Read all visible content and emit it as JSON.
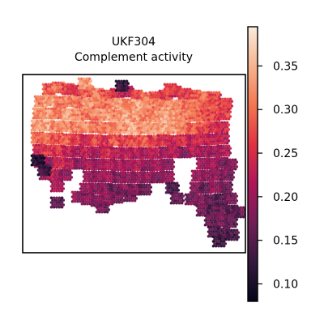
{
  "chart_data": {
    "type": "scatter",
    "title": "UKF304",
    "subtitle": "Complement activity",
    "xlabel": "",
    "ylabel": "",
    "grid": false,
    "colormap": "rocket",
    "colorbar": {
      "range": [
        0.08,
        0.395
      ],
      "ticks": [
        0.1,
        0.15,
        0.2,
        0.25,
        0.3,
        0.35
      ],
      "tick_labels": [
        "0.10",
        "0.15",
        "0.20",
        "0.25",
        "0.30",
        "0.35"
      ],
      "stops": [
        "#03051a",
        "#35193e",
        "#701f57",
        "#ad1759",
        "#e13342",
        "#f37651",
        "#f6b48f",
        "#faebdd"
      ]
    },
    "spots": [
      [
        60,
        110,
        0.28
      ],
      [
        72,
        108,
        0.3
      ],
      [
        84,
        110,
        0.27
      ],
      [
        96,
        112,
        0.26
      ],
      [
        108,
        113,
        0.29
      ],
      [
        120,
        116,
        0.31
      ],
      [
        132,
        118,
        0.28
      ],
      [
        144,
        116,
        0.25
      ],
      [
        156,
        113,
        0.22
      ],
      [
        168,
        118,
        0.27
      ],
      [
        180,
        121,
        0.3
      ],
      [
        192,
        120,
        0.28
      ],
      [
        204,
        118,
        0.26
      ],
      [
        216,
        113,
        0.23
      ],
      [
        228,
        116,
        0.26
      ],
      [
        240,
        118,
        0.28
      ],
      [
        252,
        120,
        0.3
      ],
      [
        264,
        120,
        0.27
      ],
      [
        50,
        125,
        0.31
      ],
      [
        62,
        124,
        0.33
      ],
      [
        74,
        126,
        0.3
      ],
      [
        86,
        125,
        0.32
      ],
      [
        98,
        127,
        0.3
      ],
      [
        110,
        128,
        0.33
      ],
      [
        122,
        127,
        0.31
      ],
      [
        134,
        129,
        0.3
      ],
      [
        146,
        128,
        0.33
      ],
      [
        158,
        129,
        0.31
      ],
      [
        170,
        130,
        0.34
      ],
      [
        182,
        129,
        0.32
      ],
      [
        194,
        130,
        0.31
      ],
      [
        206,
        131,
        0.33
      ],
      [
        218,
        130,
        0.32
      ],
      [
        230,
        131,
        0.3
      ],
      [
        242,
        130,
        0.31
      ],
      [
        254,
        131,
        0.29
      ],
      [
        266,
        130,
        0.27
      ],
      [
        278,
        128,
        0.26
      ],
      [
        48,
        140,
        0.32
      ],
      [
        60,
        140,
        0.33
      ],
      [
        72,
        140,
        0.31
      ],
      [
        84,
        141,
        0.34
      ],
      [
        96,
        142,
        0.32
      ],
      [
        108,
        141,
        0.3
      ],
      [
        120,
        142,
        0.31
      ],
      [
        132,
        142,
        0.33
      ],
      [
        144,
        143,
        0.32
      ],
      [
        156,
        143,
        0.34
      ],
      [
        168,
        144,
        0.33
      ],
      [
        180,
        143,
        0.31
      ],
      [
        192,
        144,
        0.32
      ],
      [
        204,
        144,
        0.34
      ],
      [
        216,
        143,
        0.33
      ],
      [
        228,
        144,
        0.31
      ],
      [
        240,
        143,
        0.3
      ],
      [
        252,
        143,
        0.28
      ],
      [
        264,
        142,
        0.27
      ],
      [
        276,
        141,
        0.26
      ],
      [
        46,
        155,
        0.33
      ],
      [
        58,
        155,
        0.34
      ],
      [
        70,
        156,
        0.32
      ],
      [
        82,
        156,
        0.33
      ],
      [
        94,
        157,
        0.31
      ],
      [
        106,
        157,
        0.32
      ],
      [
        118,
        157,
        0.3
      ],
      [
        130,
        158,
        0.31
      ],
      [
        142,
        158,
        0.32
      ],
      [
        154,
        158,
        0.33
      ],
      [
        166,
        159,
        0.34
      ],
      [
        178,
        158,
        0.32
      ],
      [
        190,
        159,
        0.33
      ],
      [
        202,
        159,
        0.34
      ],
      [
        214,
        158,
        0.33
      ],
      [
        226,
        158,
        0.31
      ],
      [
        238,
        159,
        0.29
      ],
      [
        250,
        158,
        0.27
      ],
      [
        262,
        157,
        0.26
      ],
      [
        274,
        157,
        0.24
      ],
      [
        46,
        170,
        0.29
      ],
      [
        58,
        171,
        0.3
      ],
      [
        70,
        171,
        0.27
      ],
      [
        82,
        172,
        0.29
      ],
      [
        94,
        172,
        0.26
      ],
      [
        106,
        173,
        0.24
      ],
      [
        118,
        173,
        0.27
      ],
      [
        130,
        174,
        0.25
      ],
      [
        142,
        173,
        0.28
      ],
      [
        154,
        174,
        0.26
      ],
      [
        166,
        174,
        0.27
      ],
      [
        178,
        174,
        0.28
      ],
      [
        190,
        174,
        0.26
      ],
      [
        202,
        173,
        0.25
      ],
      [
        214,
        174,
        0.24
      ],
      [
        226,
        173,
        0.25
      ],
      [
        238,
        173,
        0.23
      ],
      [
        250,
        172,
        0.24
      ],
      [
        262,
        172,
        0.23
      ],
      [
        274,
        171,
        0.22
      ],
      [
        48,
        185,
        0.24
      ],
      [
        60,
        186,
        0.26
      ],
      [
        72,
        186,
        0.25
      ],
      [
        84,
        187,
        0.23
      ],
      [
        96,
        187,
        0.22
      ],
      [
        108,
        188,
        0.23
      ],
      [
        120,
        188,
        0.21
      ],
      [
        132,
        188,
        0.24
      ],
      [
        144,
        189,
        0.22
      ],
      [
        156,
        189,
        0.23
      ],
      [
        168,
        189,
        0.22
      ],
      [
        180,
        189,
        0.21
      ],
      [
        192,
        189,
        0.23
      ],
      [
        204,
        188,
        0.2
      ],
      [
        216,
        188,
        0.22
      ],
      [
        228,
        188,
        0.19
      ],
      [
        240,
        187,
        0.22
      ],
      [
        252,
        187,
        0.21
      ],
      [
        264,
        187,
        0.2
      ],
      [
        276,
        186,
        0.21
      ],
      [
        50,
        200,
        0.22
      ],
      [
        62,
        201,
        0.2
      ],
      [
        74,
        201,
        0.24
      ],
      [
        86,
        202,
        0.22
      ],
      [
        98,
        202,
        0.18
      ],
      [
        110,
        203,
        0.21
      ],
      [
        122,
        203,
        0.2
      ],
      [
        134,
        203,
        0.22
      ],
      [
        146,
        204,
        0.21
      ],
      [
        158,
        204,
        0.2
      ],
      [
        170,
        204,
        0.22
      ],
      [
        182,
        204,
        0.19
      ],
      [
        194,
        204,
        0.21
      ],
      [
        206,
        203,
        0.18
      ],
      [
        250,
        202,
        0.21
      ],
      [
        262,
        202,
        0.2
      ],
      [
        274,
        201,
        0.19
      ],
      [
        284,
        203,
        0.18
      ],
      [
        56,
        215,
        0.2
      ],
      [
        68,
        216,
        0.22
      ],
      [
        80,
        216,
        0.19
      ],
      [
        110,
        218,
        0.2
      ],
      [
        122,
        218,
        0.19
      ],
      [
        134,
        218,
        0.21
      ],
      [
        146,
        219,
        0.18
      ],
      [
        158,
        219,
        0.2
      ],
      [
        170,
        219,
        0.19
      ],
      [
        182,
        219,
        0.2
      ],
      [
        194,
        219,
        0.18
      ],
      [
        206,
        218,
        0.19
      ],
      [
        244,
        217,
        0.2
      ],
      [
        256,
        217,
        0.19
      ],
      [
        268,
        216,
        0.2
      ],
      [
        280,
        216,
        0.18
      ],
      [
        70,
        230,
        0.21
      ],
      [
        106,
        233,
        0.2
      ],
      [
        118,
        233,
        0.18
      ],
      [
        130,
        233,
        0.19
      ],
      [
        142,
        234,
        0.17
      ],
      [
        154,
        234,
        0.19
      ],
      [
        166,
        234,
        0.18
      ],
      [
        178,
        234,
        0.17
      ],
      [
        242,
        232,
        0.18
      ],
      [
        254,
        232,
        0.16
      ],
      [
        266,
        231,
        0.19
      ],
      [
        278,
        231,
        0.17
      ],
      [
        96,
        243,
        0.2
      ],
      [
        108,
        246,
        0.18
      ],
      [
        120,
        248,
        0.17
      ],
      [
        132,
        246,
        0.19
      ],
      [
        144,
        244,
        0.18
      ],
      [
        160,
        242,
        0.17
      ],
      [
        218,
        245,
        0.16
      ],
      [
        236,
        246,
        0.17
      ],
      [
        248,
        247,
        0.18
      ],
      [
        260,
        247,
        0.16
      ],
      [
        272,
        246,
        0.15
      ],
      [
        284,
        245,
        0.17
      ],
      [
        250,
        260,
        0.17
      ],
      [
        262,
        260,
        0.15
      ],
      [
        274,
        260,
        0.16
      ],
      [
        286,
        260,
        0.15
      ],
      [
        260,
        272,
        0.16
      ],
      [
        272,
        273,
        0.17
      ],
      [
        284,
        274,
        0.15
      ],
      [
        264,
        286,
        0.14
      ],
      [
        276,
        288,
        0.15
      ],
      [
        286,
        290,
        0.14
      ],
      [
        270,
        298,
        0.13
      ],
      [
        104,
        103,
        0.33
      ],
      [
        150,
        106,
        0.12
      ],
      [
        210,
        110,
        0.27
      ],
      [
        46,
        198,
        0.11
      ],
      [
        54,
        210,
        0.13
      ],
      [
        70,
        250,
        0.15
      ],
      [
        126,
        256,
        0.17
      ],
      [
        212,
        232,
        0.14
      ],
      [
        294,
        262,
        0.16
      ]
    ]
  }
}
